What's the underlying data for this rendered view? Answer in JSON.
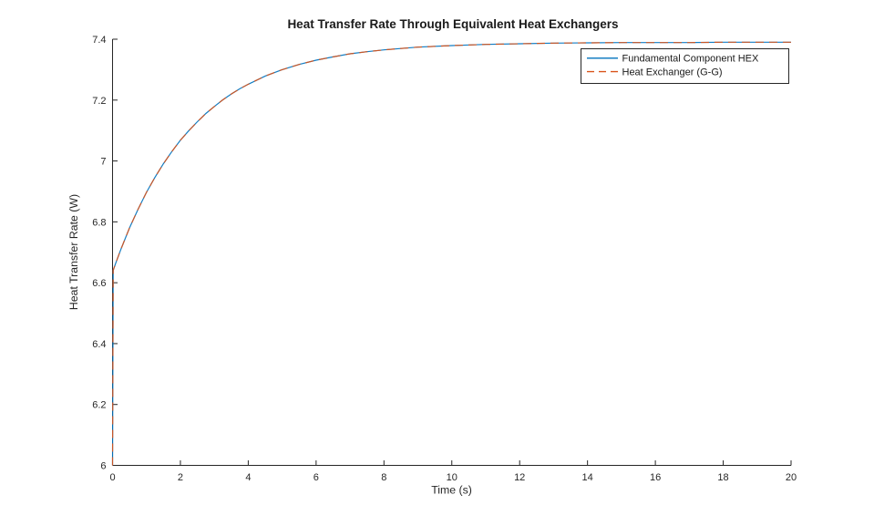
{
  "title": "Heat Transfer Rate Through Equivalent Heat Exchangers",
  "colors": {
    "background": "#ffffff",
    "axis": "#262626",
    "title_text": "#1a1a1a",
    "series_blue": "#0072BD",
    "series_orange": "#D95319",
    "legend_border": "#0f0f0f",
    "legend_background": "#ffffff"
  },
  "chart_data": {
    "type": "line",
    "title": "Heat Transfer Rate Through Equivalent Heat Exchangers",
    "xlabel": "Time (s)",
    "ylabel": "Heat Transfer Rate (W)",
    "xlim": [
      0,
      20
    ],
    "ylim": [
      6,
      7.4
    ],
    "xticks": [
      0,
      2,
      4,
      6,
      8,
      10,
      12,
      14,
      16,
      18,
      20
    ],
    "yticks": [
      6,
      6.2,
      6.4,
      6.6,
      6.8,
      7,
      7.2,
      7.4
    ],
    "grid": false,
    "legend_position": "northeast-inside",
    "x": [
      0,
      0.02,
      0.1,
      0.25,
      0.5,
      0.75,
      1,
      1.25,
      1.5,
      1.75,
      2,
      2.25,
      2.5,
      2.75,
      3,
      3.25,
      3.5,
      3.75,
      4,
      4.5,
      5,
      5.5,
      6,
      6.5,
      7,
      7.5,
      8,
      9,
      10,
      11,
      12,
      13,
      14,
      15,
      16,
      17,
      18,
      19,
      20
    ],
    "series": [
      {
        "name": "Fundamental Component HEX",
        "color": "#0072BD",
        "line_style": "solid",
        "values": [
          6.0,
          6.641,
          6.666,
          6.711,
          6.78,
          6.841,
          6.897,
          6.946,
          6.991,
          7.031,
          7.068,
          7.1,
          7.129,
          7.156,
          7.179,
          7.201,
          7.22,
          7.237,
          7.252,
          7.279,
          7.3,
          7.317,
          7.331,
          7.342,
          7.352,
          7.359,
          7.365,
          7.374,
          7.379,
          7.383,
          7.385,
          7.387,
          7.388,
          7.389,
          7.389,
          7.389,
          7.39,
          7.39,
          7.39
        ]
      },
      {
        "name": "Heat Exchanger (G-G)",
        "color": "#D95319",
        "line_style": "dashed",
        "values": [
          6.0,
          6.641,
          6.666,
          6.711,
          6.78,
          6.841,
          6.897,
          6.946,
          6.991,
          7.031,
          7.068,
          7.1,
          7.129,
          7.156,
          7.179,
          7.201,
          7.22,
          7.237,
          7.252,
          7.279,
          7.3,
          7.317,
          7.331,
          7.342,
          7.352,
          7.359,
          7.365,
          7.374,
          7.379,
          7.383,
          7.385,
          7.387,
          7.388,
          7.389,
          7.389,
          7.389,
          7.39,
          7.39,
          7.39
        ]
      }
    ]
  }
}
